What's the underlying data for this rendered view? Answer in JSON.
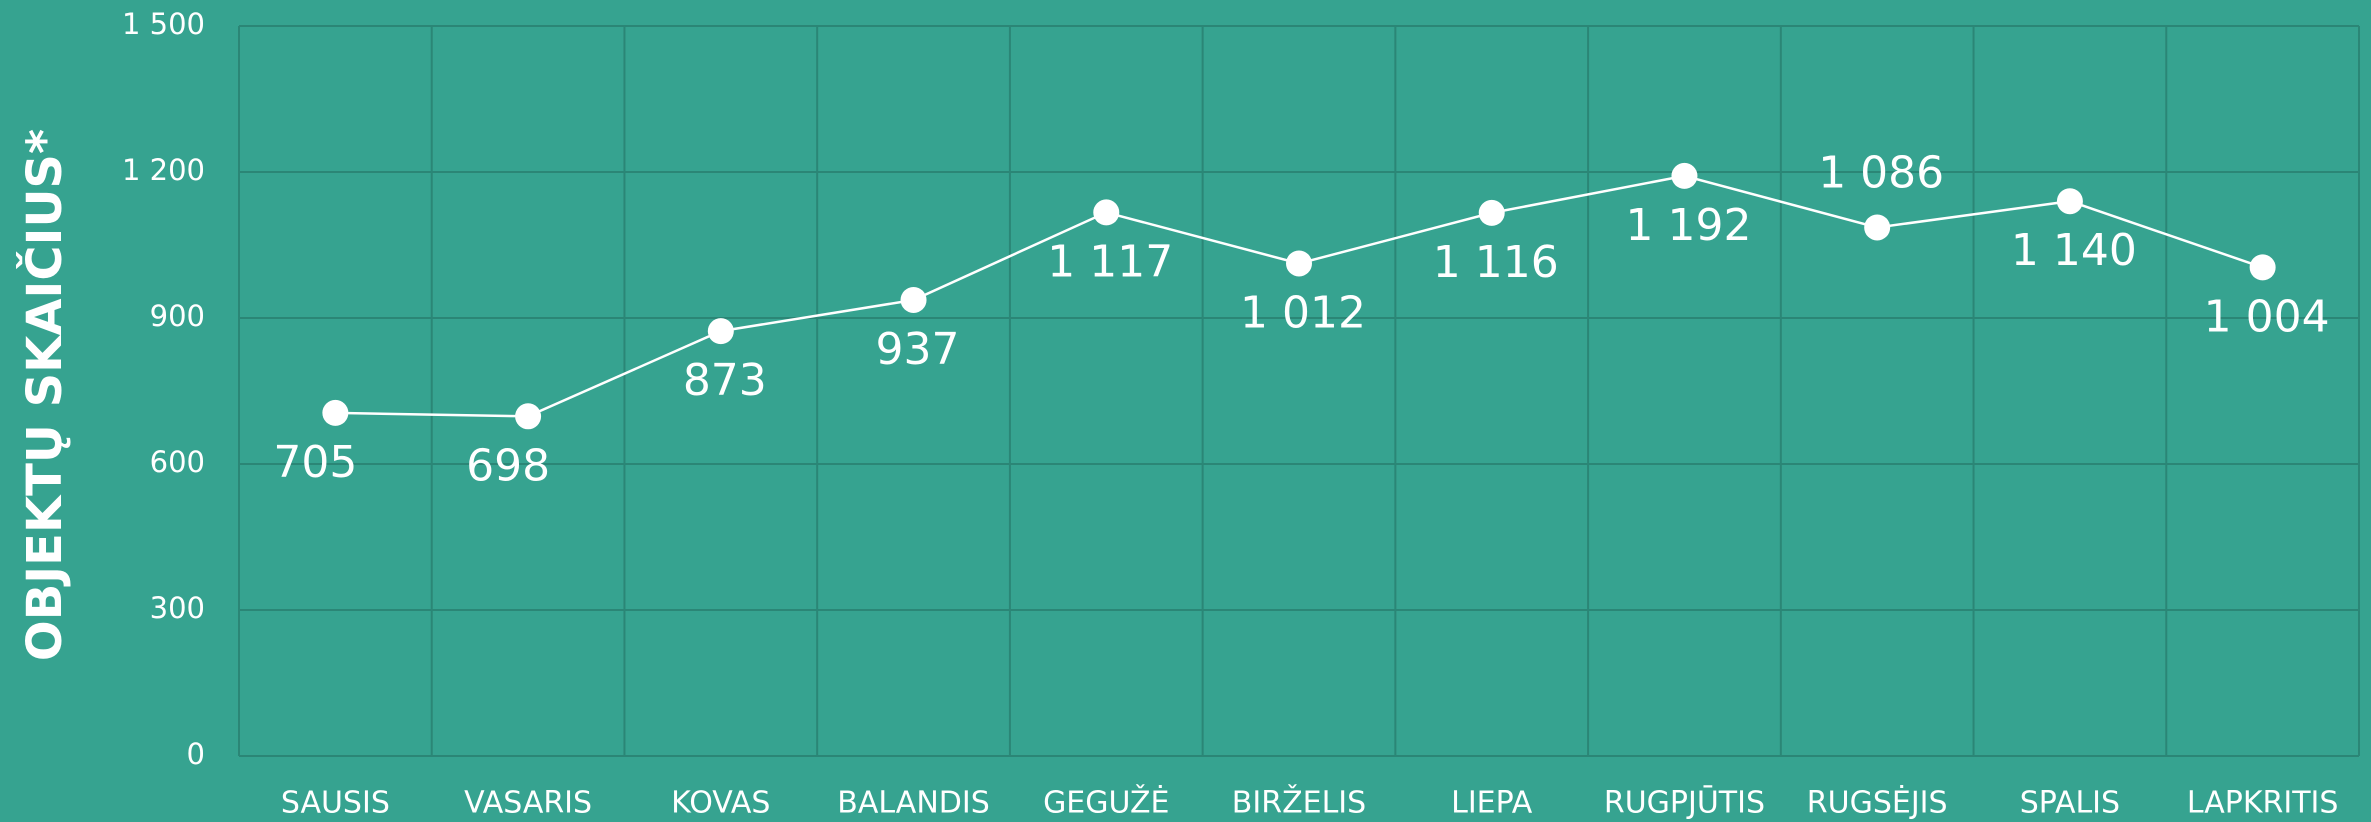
{
  "chart_data": {
    "type": "line",
    "y_label": "OBJEKTŲ SKAIČIUS*",
    "categories": [
      "SAUSIS",
      "VASARIS",
      "KOVAS",
      "BALANDIS",
      "GEGUŽĖ",
      "BIRŽELIS",
      "LIEPA",
      "RUGPJŪTIS",
      "RUGSĖJIS",
      "SPALIS",
      "LAPKRITIS"
    ],
    "series": [
      {
        "color": "#ffffff",
        "values": [
          705,
          698,
          873,
          937,
          1117,
          1012,
          1116,
          1192,
          1086,
          1140,
          1004
        ],
        "value_labels": [
          "705",
          "698",
          "873",
          "937",
          "1 117",
          "1 012",
          "1 116",
          "1 192",
          "1 086",
          "1 140",
          "1 004"
        ]
      }
    ],
    "ylim": [
      0,
      1500
    ],
    "yticks": [
      0,
      300,
      600,
      900,
      {
        "value": 1200,
        "label": "1 200"
      },
      {
        "value": 1500,
        "label": "1 500"
      }
    ],
    "grid": true
  }
}
